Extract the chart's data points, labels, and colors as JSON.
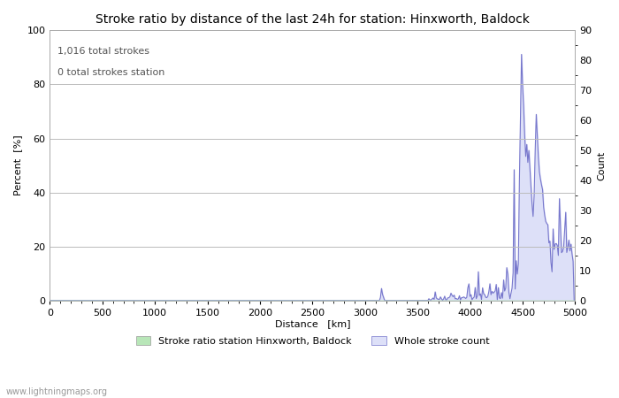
{
  "title": "Stroke ratio by distance of the last 24h for station: Hinxworth, Baldock",
  "xlabel": "Distance   [km]",
  "ylabel_left": "Percent  [%]",
  "ylabel_right": "Count",
  "annotation_line1": "1,016 total strokes",
  "annotation_line2": "0 total strokes station",
  "watermark": "www.lightningmaps.org",
  "xlim": [
    0,
    5000
  ],
  "ylim_left": [
    0,
    100
  ],
  "ylim_right": [
    0,
    90
  ],
  "xticks": [
    0,
    500,
    1000,
    1500,
    2000,
    2500,
    3000,
    3500,
    4000,
    4500,
    5000
  ],
  "yticks_left": [
    0,
    20,
    40,
    60,
    80,
    100
  ],
  "yticks_right": [
    0,
    10,
    20,
    30,
    40,
    50,
    60,
    70,
    80,
    90
  ],
  "legend_stroke_ratio_label": "Stroke ratio station Hinxworth, Baldock",
  "legend_stroke_count_label": "Whole stroke count",
  "stroke_ratio_color": "#b8e6b8",
  "stroke_count_fill_color": "#dde0f8",
  "stroke_count_line_color": "#7777cc",
  "bg_color": "#ffffff",
  "grid_color": "#bbbbbb",
  "title_fontsize": 10,
  "label_fontsize": 8,
  "tick_fontsize": 8,
  "annotation_fontsize": 8,
  "figwidth": 7.0,
  "figheight": 4.5,
  "dpi": 100
}
